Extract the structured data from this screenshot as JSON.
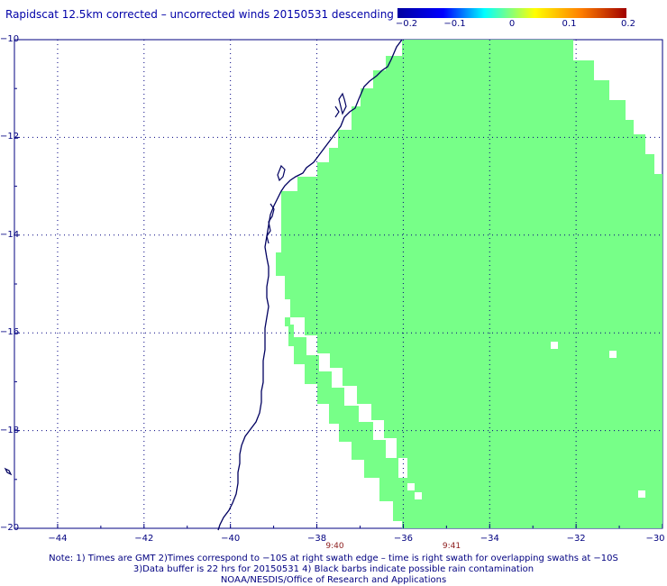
{
  "title": "Rapidscat 12.5km corrected – uncorrected winds 20150531 descending",
  "colorbar": {
    "labels": [
      "−0.2",
      "−0.1",
      "0",
      "0.1",
      "0.2"
    ],
    "values": [
      -0.2,
      -0.1,
      0,
      0.1,
      0.2
    ],
    "colors": [
      "#0000a0",
      "#0000ff",
      "#00ffff",
      "#ffff00",
      "#ff7f00",
      "#a00000"
    ]
  },
  "map": {
    "lon_range": [
      -45,
      -30
    ],
    "lat_range": [
      -20,
      -10
    ],
    "lon_labels": [
      "−44",
      "−42",
      "−40",
      "−38",
      "−36",
      "−34",
      "−32",
      "−30"
    ],
    "lat_labels": [
      "−10",
      "−12",
      "−14",
      "−16",
      "−18",
      "−20"
    ],
    "swath_color": "#77ff88",
    "coast_color": "#000060",
    "grid": "dotted"
  },
  "times": [
    {
      "label": "9:40",
      "lon": -38
    },
    {
      "label": "9:41",
      "lon": -35.3
    }
  ],
  "notes": [
    "Note: 1) Times are GMT 2)Times correspond to −10S at right swath edge – time is right swath for overlapping swaths at −10S",
    "3)Data buffer is 22 hrs for 20150531 4) Black barbs indicate possible rain contamination",
    "NOAA/NESDIS/Office of Research and Applications"
  ]
}
